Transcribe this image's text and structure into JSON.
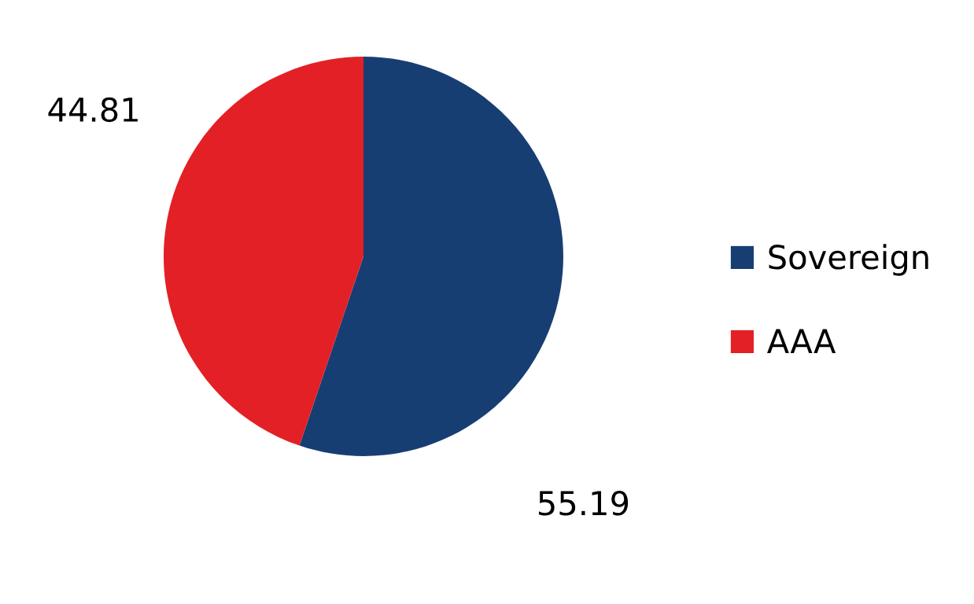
{
  "chart_data": {
    "type": "pie",
    "categories": [
      "Sovereign",
      "AAA"
    ],
    "values": [
      55.19,
      44.81
    ],
    "colors": [
      "#173e73",
      "#e32025"
    ],
    "data_labels": true,
    "legend": "right"
  }
}
